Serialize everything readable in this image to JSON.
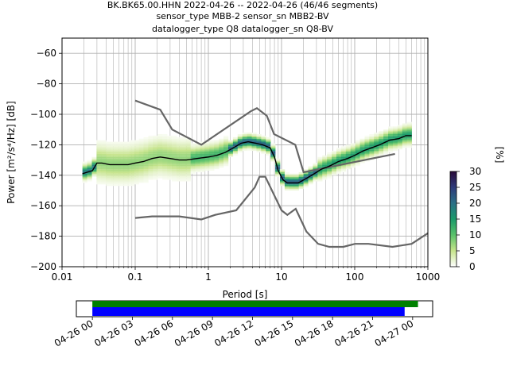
{
  "title": {
    "line1": "BK.BK65.00.HHN   2022-04-26 -- 2022-04-26  (46/46 segments)",
    "line2": "sensor_type MBB-2 sensor_sn MBB2-BV",
    "line3": "datalogger_type Q8 datalogger_sn Q8-BV"
  },
  "chart_data": [
    {
      "type": "heatmap",
      "xlabel": "Period [s]",
      "ylabel": "Power [m²/s⁴/Hz] [dB]",
      "xscale": "log",
      "xlim": [
        0.01,
        1000
      ],
      "ylim": [
        -200,
        -50
      ],
      "xticks": [
        {
          "v": 0.01,
          "label": "0.01"
        },
        {
          "v": 0.1,
          "label": "0.1"
        },
        {
          "v": 1,
          "label": "1"
        },
        {
          "v": 10,
          "label": "10"
        },
        {
          "v": 100,
          "label": "100"
        },
        {
          "v": 1000,
          "label": "1000"
        }
      ],
      "yticks": [
        -200,
        -180,
        -160,
        -140,
        -120,
        -100,
        -80,
        -60
      ],
      "grid": true,
      "colorbar": {
        "label": "[%]",
        "ticks": [
          0,
          5,
          10,
          15,
          20,
          25,
          30
        ],
        "range": [
          0,
          30
        ],
        "colors": [
          "#ffffff",
          "#c6e48b",
          "#5ac26a",
          "#1b9a6a",
          "#2a6f86",
          "#2e3b7a",
          "#2a0a3a"
        ]
      },
      "mode_line": {
        "color": "#000000",
        "x": [
          0.019,
          0.022,
          0.026,
          0.03,
          0.035,
          0.045,
          0.06,
          0.08,
          0.1,
          0.13,
          0.17,
          0.22,
          0.3,
          0.4,
          0.5,
          0.7,
          1.0,
          1.3,
          1.7,
          2.2,
          2.8,
          3.5,
          4.5,
          5.5,
          7,
          8,
          9,
          10.5,
          12,
          14,
          17,
          22,
          28,
          35,
          45,
          60,
          80,
          100,
          130,
          170,
          220,
          300,
          400,
          500,
          600
        ],
        "y": [
          -139,
          -138,
          -137,
          -132,
          -132,
          -133,
          -133,
          -133,
          -132,
          -131,
          -129,
          -128,
          -129,
          -130,
          -130,
          -129,
          -128,
          -127,
          -125,
          -122,
          -119,
          -118,
          -119,
          -120,
          -122,
          -128,
          -137,
          -143,
          -145,
          -145,
          -145,
          -142,
          -139,
          -136,
          -134,
          -131,
          -129,
          -127,
          -124,
          -122,
          -120,
          -117,
          -116,
          -114,
          -114
        ]
      },
      "noise_models": {
        "color": "#666666",
        "high": {
          "x": [
            0.1,
            0.22,
            0.32,
            0.8,
            3.8,
            4.6,
            6.3,
            7.9,
            15.4,
            20,
            354.8
          ],
          "y": [
            -91,
            -97,
            -110,
            -120,
            -98,
            -96,
            -101,
            -113,
            -120,
            -138,
            -126
          ]
        },
        "low": {
          "x": [
            0.1,
            0.17,
            0.4,
            0.8,
            1.24,
            2.4,
            4.3,
            5,
            6,
            10,
            12,
            15.6,
            21.9,
            31.6,
            45,
            70,
            101,
            154,
            328,
            600,
            1000
          ],
          "y": [
            -168,
            -167,
            -167,
            -169,
            -166,
            -163,
            -148,
            -141,
            -141,
            -163,
            -166,
            -162,
            -177,
            -185,
            -187,
            -187,
            -185,
            -185,
            -187,
            -185,
            -178
          ]
        }
      }
    },
    {
      "type": "bar",
      "description_free": true,
      "x_tick_labels": [
        "04-26 00",
        "04-26 03",
        "04-26 06",
        "04-26 09",
        "04-26 12",
        "04-26 15",
        "04-26 18",
        "04-26 21",
        "04-27 00"
      ],
      "x_range_hours": [
        -1.2,
        25.5
      ],
      "data_available": {
        "color": "#008000",
        "start_hour": 0.0,
        "end_hour": 24.4
      },
      "psd_used": {
        "color": "#0000ff",
        "start_hour": 0.0,
        "end_hour": 23.4
      }
    }
  ]
}
